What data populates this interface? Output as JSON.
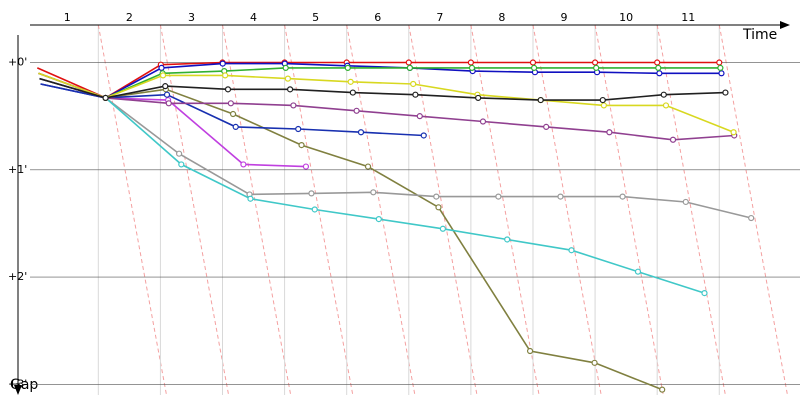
{
  "chart_data": {
    "type": "line",
    "x_label": "Time",
    "y_label": "Gap",
    "x": [
      0,
      1,
      2,
      3,
      4,
      5,
      6,
      7,
      8,
      9,
      10,
      11
    ],
    "xlim": [
      -0.1,
      12.3
    ],
    "xticks": [
      {
        "value": 0.5,
        "label": "1"
      },
      {
        "value": 1.5,
        "label": "2"
      },
      {
        "value": 2.5,
        "label": "3"
      },
      {
        "value": 3.5,
        "label": "4"
      },
      {
        "value": 4.5,
        "label": "5"
      },
      {
        "value": 5.5,
        "label": "6"
      },
      {
        "value": 6.5,
        "label": "7"
      },
      {
        "value": 7.5,
        "label": "8"
      },
      {
        "value": 8.5,
        "label": "9"
      },
      {
        "value": 9.5,
        "label": "10"
      },
      {
        "value": 10.5,
        "label": "11"
      }
    ],
    "ylim": [
      -0.35,
      3.1
    ],
    "yticks": [
      {
        "value": 0,
        "label": "+0'"
      },
      {
        "value": 1,
        "label": "+1'"
      },
      {
        "value": 2,
        "label": "+2'"
      },
      {
        "value": 3,
        "label": "+3'"
      }
    ],
    "grid": true,
    "series": [
      {
        "color": "#e01010",
        "values": [
          0.05,
          0.33,
          0.02,
          0,
          0,
          0,
          0,
          0,
          0,
          0,
          0,
          0
        ]
      },
      {
        "color": "#1010c0",
        "values": [
          0.2,
          0.33,
          0.05,
          0.01,
          0.01,
          0.03,
          0.05,
          0.08,
          0.09,
          0.09,
          0.1,
          0.1
        ]
      },
      {
        "color": "#30b030",
        "values": [
          0.1,
          0.33,
          0.1,
          0.08,
          0.05,
          0.05,
          0.05,
          0.05,
          0.05,
          0.05,
          0.05,
          0.05
        ]
      },
      {
        "color": "#808040",
        "values": [
          0.1,
          0.33,
          0.25,
          0.48,
          0.77,
          0.97,
          1.35,
          2.69,
          2.8,
          3.05,
          null,
          null
        ]
      },
      {
        "color": "#999999",
        "values": [
          0.15,
          0.33,
          0.85,
          1.23,
          1.22,
          1.21,
          1.25,
          1.25,
          1.25,
          1.25,
          1.3,
          1.45
        ]
      },
      {
        "color": "#40c8c8",
        "values": [
          0.15,
          0.33,
          0.95,
          1.27,
          1.37,
          1.46,
          1.55,
          1.65,
          1.75,
          1.95,
          2.15,
          null
        ]
      },
      {
        "color": "#c040e0",
        "values": [
          0.1,
          0.33,
          0.35,
          0.95,
          0.97,
          null,
          null,
          null,
          null,
          null,
          null,
          null
        ]
      },
      {
        "color": "#1830b0",
        "values": [
          0.2,
          0.33,
          0.3,
          0.6,
          0.62,
          0.65,
          0.68,
          null,
          null,
          null,
          null,
          null
        ]
      },
      {
        "color": "#904090",
        "values": [
          0.15,
          0.33,
          0.38,
          0.38,
          0.4,
          0.45,
          0.5,
          0.55,
          0.6,
          0.65,
          0.72,
          0.68
        ]
      },
      {
        "color": "#d8d820",
        "values": [
          0.1,
          0.33,
          0.12,
          0.12,
          0.15,
          0.18,
          0.2,
          0.3,
          0.35,
          0.4,
          0.4,
          0.65
        ]
      },
      {
        "color": "#202020",
        "values": [
          0.15,
          0.33,
          0.22,
          0.25,
          0.25,
          0.28,
          0.3,
          0.33,
          0.35,
          0.35,
          0.3,
          0.28
        ]
      }
    ]
  }
}
